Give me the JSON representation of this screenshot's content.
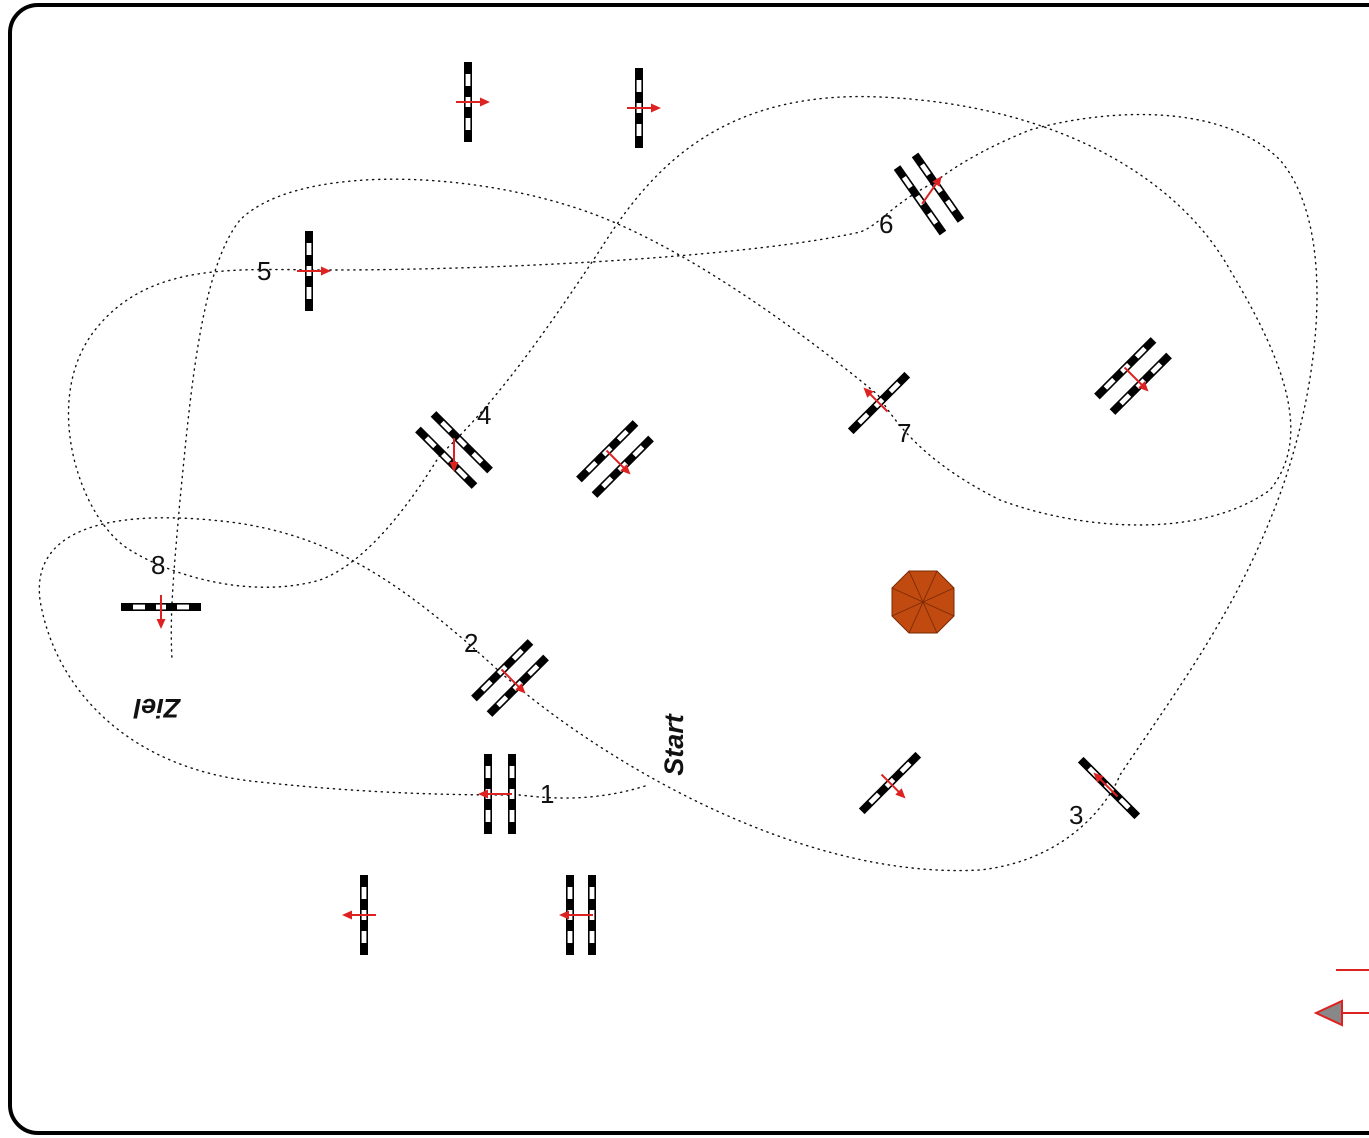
{
  "course": {
    "start_label": "Start",
    "finish_label": "Ziel",
    "obstacle_numbers": [
      "1",
      "2",
      "3",
      "4",
      "5",
      "6",
      "7",
      "8"
    ]
  },
  "colors": {
    "frame": "#000000",
    "pole_dark": "#000000",
    "pole_light": "#ffffff",
    "direction_arrow": "#dd2222",
    "decoration_fill": "#c04a10",
    "legend_arrow_fill": "#888888"
  }
}
